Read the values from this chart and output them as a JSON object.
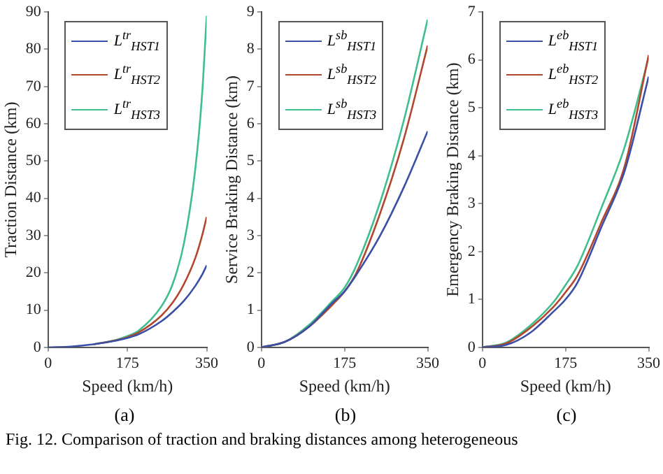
{
  "chart_data": [
    {
      "type": "line",
      "xlabel": "Speed (km/h)",
      "ylabel": "Traction Distance (km)",
      "xlim": [
        0,
        350
      ],
      "xticks": [
        0,
        175,
        350
      ],
      "ylim": [
        0,
        90
      ],
      "yticks": [
        0,
        10,
        20,
        30,
        40,
        50,
        60,
        70,
        80,
        90
      ],
      "grid": false,
      "legend": "top left",
      "marker": "none",
      "x": [
        0,
        50,
        100,
        150,
        175,
        200,
        250,
        275,
        300,
        325,
        340,
        350
      ],
      "series": [
        {
          "name": "L$^{tr}$$_{HST1}$",
          "color": "#3b4fa6",
          "values": [
            0,
            0.2,
            0.8,
            1.8,
            2.5,
            3.5,
            7,
            9.5,
            12.5,
            16.5,
            19.5,
            22
          ]
        },
        {
          "name": "L$^{tr}$$_{HST2}$",
          "color": "#b3472e",
          "x": [
            100,
            150,
            175,
            200,
            250,
            275,
            300,
            325,
            340,
            350
          ],
          "values": [
            0.8,
            1.9,
            2.7,
            4,
            8.5,
            12,
            17,
            24,
            30,
            35
          ]
        },
        {
          "name": "L$^{tr}$$_{HST3}$",
          "color": "#3fbf8c",
          "x": [
            100,
            150,
            175,
            200,
            250,
            275,
            300,
            325,
            340,
            350
          ],
          "values": [
            0.8,
            2,
            3,
            4.5,
            11,
            17,
            28,
            48,
            68,
            89
          ]
        }
      ],
      "annotations": [
        "(a)",
        "Fig. 12.   Comparison of traction and braking distances among heterogeneous"
      ]
    },
    {
      "type": "line",
      "xlabel": "Speed (km/h)",
      "ylabel": "Service Braking Distance (km)",
      "xlim": [
        0,
        350
      ],
      "xticks": [
        0,
        175,
        350
      ],
      "ylim": [
        0,
        9
      ],
      "yticks": [
        0,
        1,
        2,
        3,
        4,
        5,
        6,
        7,
        8,
        9
      ],
      "grid": false,
      "legend": "top left",
      "marker": "none",
      "x": [
        0,
        50,
        100,
        150,
        175,
        200,
        250,
        300,
        350
      ],
      "series": [
        {
          "name": "L$^{sb}$$_{HST1}$",
          "color": "#3b4fa6",
          "values": [
            0,
            0.15,
            0.55,
            1.2,
            1.5,
            1.95,
            3,
            4.3,
            5.8
          ]
        },
        {
          "name": "L$^{sb}$$_{HST2}$",
          "color": "#b3472e",
          "values": [
            0,
            0.15,
            0.55,
            1.15,
            1.5,
            2,
            3.6,
            5.6,
            8.1
          ]
        },
        {
          "name": "L$^{sb}$$_{HST3}$",
          "color": "#3fbf8c",
          "values": [
            0,
            0.15,
            0.6,
            1.25,
            1.6,
            2.2,
            3.9,
            6.1,
            8.8
          ]
        }
      ],
      "annotations": [
        "(b)"
      ]
    },
    {
      "type": "line",
      "xlabel": "Speed (km/h)",
      "ylabel": "Emergency Braking Distance (km)",
      "xlim": [
        0,
        350
      ],
      "xticks": [
        0,
        175,
        350
      ],
      "ylim": [
        0,
        7
      ],
      "yticks": [
        0,
        1,
        2,
        3,
        4,
        5,
        6,
        7
      ],
      "grid": false,
      "legend": "top left",
      "marker": "none",
      "x": [
        0,
        50,
        100,
        150,
        175,
        200,
        250,
        300,
        350
      ],
      "series": [
        {
          "name": "L$^{eb}$$_{HST1}$",
          "color": "#3b4fa6",
          "values": [
            0,
            0.05,
            0.3,
            0.75,
            1,
            1.35,
            2.5,
            3.7,
            5.65
          ]
        },
        {
          "name": "L$^{eb}$$_{HST2}$",
          "color": "#b3472e",
          "values": [
            0,
            0.08,
            0.4,
            0.85,
            1.15,
            1.5,
            2.6,
            3.8,
            6.1
          ]
        },
        {
          "name": "L$^{eb}$$_{HST3}$",
          "color": "#3fbf8c",
          "values": [
            0,
            0.1,
            0.45,
            0.95,
            1.3,
            1.7,
            2.9,
            4.2,
            6.05
          ]
        }
      ],
      "annotations": [
        "(c)"
      ]
    }
  ]
}
